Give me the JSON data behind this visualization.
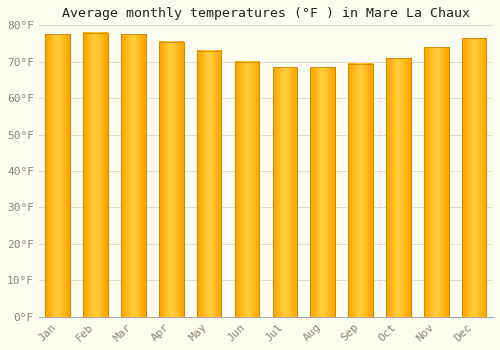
{
  "title": "Average monthly temperatures (°F ) in Mare La Chaux",
  "months": [
    "Jan",
    "Feb",
    "Mar",
    "Apr",
    "May",
    "Jun",
    "Jul",
    "Aug",
    "Sep",
    "Oct",
    "Nov",
    "Dec"
  ],
  "values": [
    77.5,
    78.0,
    77.5,
    75.5,
    73.0,
    70.0,
    68.5,
    68.5,
    69.5,
    71.0,
    74.0,
    76.5
  ],
  "bar_color_top": "#FFA500",
  "bar_color_mid": "#FFD060",
  "bar_color_edge": "#CC8800",
  "background_color": "#FDFCF0",
  "grid_color": "#E0DFC8",
  "text_color": "#888877",
  "title_color": "#222222",
  "ylim": [
    0,
    80
  ],
  "yticks": [
    0,
    10,
    20,
    30,
    40,
    50,
    60,
    70,
    80
  ],
  "title_fontsize": 9.5,
  "tick_fontsize": 8,
  "bar_width": 0.65
}
